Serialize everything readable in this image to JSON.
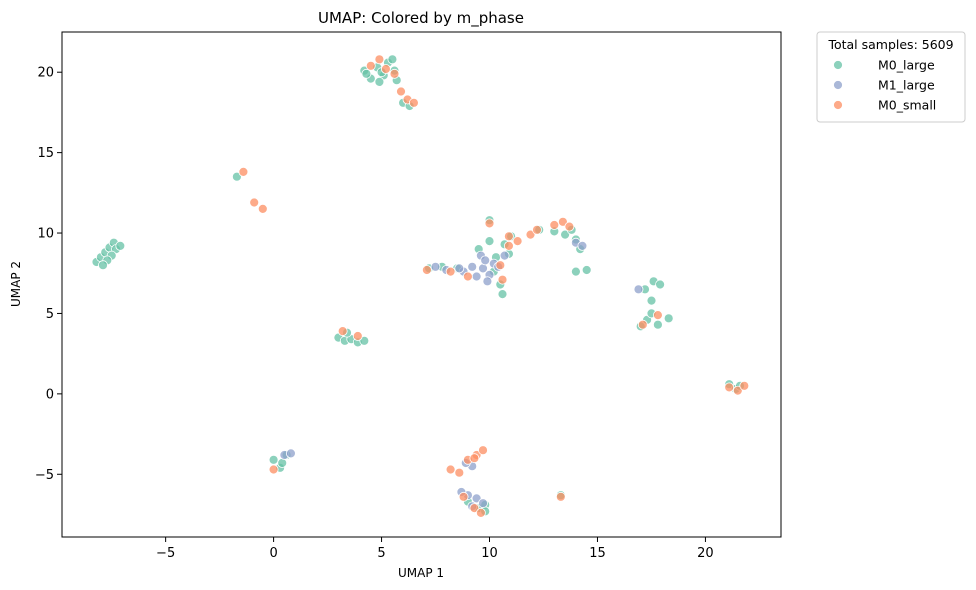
{
  "chart_data": {
    "type": "scatter",
    "title": "UMAP: Colored by m_phase",
    "xlabel": "UMAP 1",
    "ylabel": "UMAP 2",
    "xlim": [
      -9.8,
      23.5
    ],
    "ylim": [
      -8.9,
      22.5
    ],
    "xticks": [
      -5,
      0,
      5,
      10,
      15,
      20
    ],
    "xtick_labels": [
      "−5",
      "0",
      "5",
      "10",
      "15",
      "20"
    ],
    "yticks": [
      -5,
      0,
      5,
      10,
      15,
      20
    ],
    "ytick_labels": [
      "−5",
      "0",
      "5",
      "10",
      "15",
      "20"
    ],
    "grid": false,
    "legend": {
      "title": "Total samples: 5609",
      "placement": "outside-top-right"
    },
    "series": [
      {
        "name": "M0_large",
        "color": "#66c2a5",
        "points": [
          [
            -8.2,
            8.2
          ],
          [
            -8.0,
            8.5
          ],
          [
            -7.8,
            8.8
          ],
          [
            -7.6,
            9.1
          ],
          [
            -7.4,
            9.4
          ],
          [
            -7.3,
            9.0
          ],
          [
            -7.5,
            8.6
          ],
          [
            -7.7,
            8.3
          ],
          [
            -7.1,
            9.2
          ],
          [
            -7.9,
            8.0
          ],
          [
            -1.7,
            13.5
          ],
          [
            4.2,
            20.1
          ],
          [
            4.5,
            19.6
          ],
          [
            4.8,
            20.3
          ],
          [
            5.1,
            19.8
          ],
          [
            5.3,
            20.6
          ],
          [
            5.6,
            20.1
          ],
          [
            4.9,
            19.4
          ],
          [
            5.7,
            19.5
          ],
          [
            4.3,
            19.9
          ],
          [
            6.0,
            18.1
          ],
          [
            6.3,
            17.9
          ],
          [
            5.5,
            20.8
          ],
          [
            3.0,
            3.5
          ],
          [
            3.3,
            3.3
          ],
          [
            3.6,
            3.4
          ],
          [
            3.9,
            3.2
          ],
          [
            4.2,
            3.3
          ],
          [
            3.4,
            3.8
          ],
          [
            0.0,
            -4.1
          ],
          [
            0.3,
            -4.6
          ],
          [
            0.6,
            -3.8
          ],
          [
            0.4,
            -4.3
          ],
          [
            7.2,
            7.8
          ],
          [
            7.8,
            7.9
          ],
          [
            8.5,
            7.8
          ],
          [
            9.5,
            9.0
          ],
          [
            10.0,
            9.5
          ],
          [
            10.3,
            8.5
          ],
          [
            10.7,
            9.3
          ],
          [
            10.2,
            7.6
          ],
          [
            10.5,
            6.8
          ],
          [
            10.6,
            6.2
          ],
          [
            11.0,
            9.8
          ],
          [
            10.0,
            10.8
          ],
          [
            13.0,
            10.1
          ],
          [
            13.5,
            9.9
          ],
          [
            13.8,
            10.2
          ],
          [
            14.0,
            9.6
          ],
          [
            14.2,
            9.0
          ],
          [
            14.5,
            7.7
          ],
          [
            14.0,
            7.6
          ],
          [
            17.0,
            4.2
          ],
          [
            17.3,
            4.6
          ],
          [
            17.5,
            5.0
          ],
          [
            17.8,
            4.3
          ],
          [
            17.2,
            6.5
          ],
          [
            17.6,
            7.0
          ],
          [
            17.9,
            6.8
          ],
          [
            18.3,
            4.7
          ],
          [
            17.5,
            5.8
          ],
          [
            21.1,
            0.6
          ],
          [
            21.4,
            0.3
          ],
          [
            21.6,
            0.5
          ],
          [
            9.0,
            -6.7
          ],
          [
            9.5,
            -7.1
          ],
          [
            9.8,
            -6.9
          ],
          [
            12.3,
            10.2
          ],
          [
            13.3,
            -6.3
          ],
          [
            9.8,
            -7.3
          ],
          [
            10.9,
            8.7
          ],
          [
            5.0,
            20.0
          ]
        ]
      },
      {
        "name": "M1_large",
        "color": "#8da0cb",
        "points": [
          [
            7.5,
            7.9
          ],
          [
            8.0,
            7.7
          ],
          [
            8.8,
            7.6
          ],
          [
            9.2,
            7.9
          ],
          [
            9.4,
            7.3
          ],
          [
            9.7,
            7.8
          ],
          [
            10.0,
            7.4
          ],
          [
            10.2,
            8.1
          ],
          [
            9.6,
            8.6
          ],
          [
            10.4,
            7.9
          ],
          [
            8.6,
            7.8
          ],
          [
            9.9,
            7.0
          ],
          [
            14.0,
            9.4
          ],
          [
            14.3,
            9.2
          ],
          [
            16.9,
            6.5
          ],
          [
            0.5,
            -3.8
          ],
          [
            0.8,
            -3.7
          ],
          [
            9.0,
            -6.3
          ],
          [
            9.4,
            -6.5
          ],
          [
            9.7,
            -6.8
          ],
          [
            8.7,
            -6.1
          ],
          [
            9.2,
            -7.0
          ],
          [
            9.2,
            -4.5
          ],
          [
            8.9,
            -4.3
          ],
          [
            10.7,
            8.6
          ],
          [
            9.8,
            8.3
          ]
        ]
      },
      {
        "name": "M0_small",
        "color": "#fc8d62",
        "points": [
          [
            -1.4,
            13.8
          ],
          [
            -0.9,
            11.9
          ],
          [
            -0.5,
            11.5
          ],
          [
            4.5,
            20.4
          ],
          [
            4.9,
            20.8
          ],
          [
            5.2,
            20.2
          ],
          [
            5.6,
            19.9
          ],
          [
            5.9,
            18.8
          ],
          [
            6.2,
            18.3
          ],
          [
            6.5,
            18.1
          ],
          [
            0.0,
            -4.7
          ],
          [
            3.2,
            3.9
          ],
          [
            3.9,
            3.6
          ],
          [
            7.1,
            7.7
          ],
          [
            8.2,
            7.6
          ],
          [
            9.0,
            7.3
          ],
          [
            10.0,
            10.6
          ],
          [
            10.9,
            9.8
          ],
          [
            11.3,
            9.5
          ],
          [
            11.9,
            9.9
          ],
          [
            10.5,
            8.0
          ],
          [
            10.9,
            9.2
          ],
          [
            12.2,
            10.2
          ],
          [
            13.0,
            10.5
          ],
          [
            13.4,
            10.7
          ],
          [
            13.7,
            10.4
          ],
          [
            13.3,
            -6.4
          ],
          [
            8.2,
            -4.7
          ],
          [
            8.6,
            -4.9
          ],
          [
            9.0,
            -4.1
          ],
          [
            9.4,
            -3.8
          ],
          [
            9.7,
            -3.5
          ],
          [
            9.3,
            -4.0
          ],
          [
            8.8,
            -6.4
          ],
          [
            9.3,
            -7.1
          ],
          [
            9.6,
            -7.4
          ],
          [
            21.1,
            0.4
          ],
          [
            21.5,
            0.2
          ],
          [
            21.8,
            0.5
          ],
          [
            17.1,
            4.3
          ],
          [
            17.8,
            4.9
          ],
          [
            10.6,
            7.1
          ]
        ]
      }
    ]
  }
}
